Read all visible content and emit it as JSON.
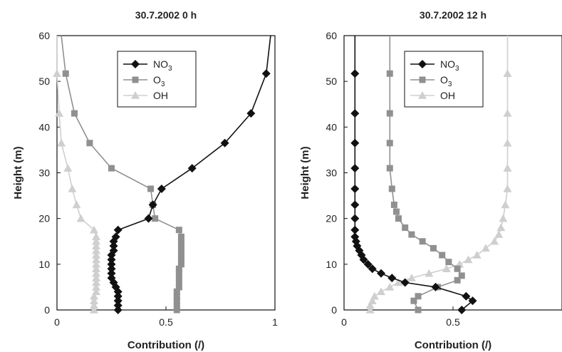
{
  "chart_data": [
    {
      "type": "line",
      "title": "30.7.2002 0 h",
      "xlabel": "Contribution (/)",
      "ylabel": "Height (m)",
      "xlim": [
        0,
        1
      ],
      "ylim": [
        0,
        60
      ],
      "xticks": [
        "0",
        "0.5",
        "1"
      ],
      "yticks": [
        "0",
        "10",
        "20",
        "30",
        "40",
        "50",
        "60"
      ],
      "legend_position": "top-center",
      "grid": false,
      "series": [
        {
          "name": "NO3",
          "color": "#111111",
          "marker": "diamond",
          "points": [
            [
              0.28,
              0
            ],
            [
              0.28,
              1
            ],
            [
              0.28,
              2
            ],
            [
              0.28,
              3
            ],
            [
              0.28,
              4
            ],
            [
              0.27,
              5
            ],
            [
              0.26,
              6
            ],
            [
              0.25,
              7
            ],
            [
              0.25,
              8
            ],
            [
              0.25,
              9
            ],
            [
              0.25,
              10
            ],
            [
              0.25,
              11
            ],
            [
              0.25,
              12
            ],
            [
              0.26,
              13
            ],
            [
              0.26,
              14
            ],
            [
              0.26,
              15
            ],
            [
              0.27,
              16
            ],
            [
              0.28,
              17.5
            ],
            [
              0.42,
              20
            ],
            [
              0.44,
              23
            ],
            [
              0.48,
              26.5
            ],
            [
              0.62,
              31
            ],
            [
              0.77,
              36.5
            ],
            [
              0.89,
              43
            ],
            [
              0.96,
              51.7
            ],
            [
              0.98,
              60
            ]
          ]
        },
        {
          "name": "O3",
          "color": "#909090",
          "marker": "square",
          "points": [
            [
              0.55,
              0
            ],
            [
              0.55,
              1
            ],
            [
              0.55,
              2
            ],
            [
              0.55,
              3
            ],
            [
              0.55,
              4
            ],
            [
              0.56,
              5
            ],
            [
              0.56,
              6
            ],
            [
              0.56,
              7
            ],
            [
              0.56,
              8
            ],
            [
              0.56,
              9
            ],
            [
              0.57,
              10
            ],
            [
              0.57,
              11
            ],
            [
              0.57,
              12
            ],
            [
              0.57,
              13
            ],
            [
              0.57,
              14
            ],
            [
              0.57,
              15
            ],
            [
              0.57,
              16
            ],
            [
              0.56,
              17.5
            ],
            [
              0.45,
              20
            ],
            [
              0.44,
              23
            ],
            [
              0.43,
              26.5
            ],
            [
              0.25,
              31
            ],
            [
              0.15,
              36.5
            ],
            [
              0.08,
              43
            ],
            [
              0.04,
              51.7
            ],
            [
              0.02,
              60
            ]
          ]
        },
        {
          "name": "OH",
          "color": "#cfcfcf",
          "marker": "triangle",
          "points": [
            [
              0.17,
              0
            ],
            [
              0.17,
              1
            ],
            [
              0.17,
              2
            ],
            [
              0.17,
              3
            ],
            [
              0.18,
              4
            ],
            [
              0.18,
              5
            ],
            [
              0.18,
              6
            ],
            [
              0.18,
              7
            ],
            [
              0.18,
              8
            ],
            [
              0.18,
              9
            ],
            [
              0.18,
              10
            ],
            [
              0.18,
              11
            ],
            [
              0.18,
              12
            ],
            [
              0.18,
              13
            ],
            [
              0.18,
              14
            ],
            [
              0.18,
              15
            ],
            [
              0.18,
              16
            ],
            [
              0.17,
              17.5
            ],
            [
              0.11,
              20
            ],
            [
              0.09,
              23
            ],
            [
              0.07,
              26.5
            ],
            [
              0.05,
              31
            ],
            [
              0.02,
              36.5
            ],
            [
              0.01,
              43
            ],
            [
              0.0,
              51.7
            ],
            [
              0.0,
              60
            ]
          ]
        }
      ]
    },
    {
      "type": "line",
      "title": "30.7.2002 12 h",
      "xlabel": "Contribution (/)",
      "ylabel": "Height (m)",
      "xlim": [
        0,
        1
      ],
      "ylim": [
        0,
        60
      ],
      "xticks": [
        "0",
        "0.5",
        ""
      ],
      "yticks": [
        "0",
        "10",
        "20",
        "30",
        "40",
        "50",
        "60"
      ],
      "legend_position": "top-center",
      "grid": false,
      "series": [
        {
          "name": "NO3",
          "color": "#111111",
          "marker": "diamond",
          "points": [
            [
              0.54,
              0
            ],
            [
              0.59,
              2
            ],
            [
              0.56,
              3
            ],
            [
              0.42,
              5
            ],
            [
              0.28,
              6
            ],
            [
              0.22,
              7
            ],
            [
              0.17,
              8
            ],
            [
              0.13,
              9
            ],
            [
              0.11,
              10
            ],
            [
              0.09,
              11
            ],
            [
              0.08,
              12
            ],
            [
              0.07,
              13
            ],
            [
              0.06,
              14
            ],
            [
              0.055,
              15
            ],
            [
              0.05,
              16
            ],
            [
              0.05,
              17.5
            ],
            [
              0.05,
              20
            ],
            [
              0.05,
              23
            ],
            [
              0.05,
              26.5
            ],
            [
              0.05,
              31
            ],
            [
              0.05,
              36.5
            ],
            [
              0.05,
              43
            ],
            [
              0.05,
              51.7
            ],
            [
              0.05,
              60
            ]
          ]
        },
        {
          "name": "O3",
          "color": "#909090",
          "marker": "square",
          "points": [
            [
              0.34,
              0
            ],
            [
              0.32,
              2
            ],
            [
              0.34,
              3
            ],
            [
              0.43,
              5
            ],
            [
              0.52,
              6.5
            ],
            [
              0.54,
              7.5
            ],
            [
              0.52,
              9
            ],
            [
              0.48,
              10.5
            ],
            [
              0.45,
              12
            ],
            [
              0.41,
              13.5
            ],
            [
              0.36,
              15
            ],
            [
              0.31,
              16.5
            ],
            [
              0.28,
              18
            ],
            [
              0.25,
              20
            ],
            [
              0.24,
              21.5
            ],
            [
              0.23,
              23
            ],
            [
              0.22,
              26.5
            ],
            [
              0.21,
              31
            ],
            [
              0.21,
              36.5
            ],
            [
              0.21,
              43
            ],
            [
              0.21,
              51.7
            ],
            [
              0.21,
              60
            ]
          ]
        },
        {
          "name": "OH",
          "color": "#cfcfcf",
          "marker": "triangle",
          "points": [
            [
              0.12,
              0
            ],
            [
              0.12,
              1
            ],
            [
              0.13,
              2
            ],
            [
              0.14,
              3
            ],
            [
              0.17,
              4
            ],
            [
              0.21,
              5
            ],
            [
              0.25,
              6
            ],
            [
              0.31,
              7
            ],
            [
              0.39,
              8
            ],
            [
              0.47,
              9
            ],
            [
              0.53,
              10
            ],
            [
              0.57,
              11
            ],
            [
              0.61,
              12
            ],
            [
              0.65,
              13.5
            ],
            [
              0.69,
              15
            ],
            [
              0.71,
              16.5
            ],
            [
              0.72,
              18
            ],
            [
              0.73,
              20
            ],
            [
              0.74,
              23
            ],
            [
              0.75,
              26.5
            ],
            [
              0.75,
              31
            ],
            [
              0.75,
              36.5
            ],
            [
              0.75,
              43
            ],
            [
              0.75,
              51.7
            ],
            [
              0.75,
              60
            ]
          ]
        }
      ]
    }
  ]
}
